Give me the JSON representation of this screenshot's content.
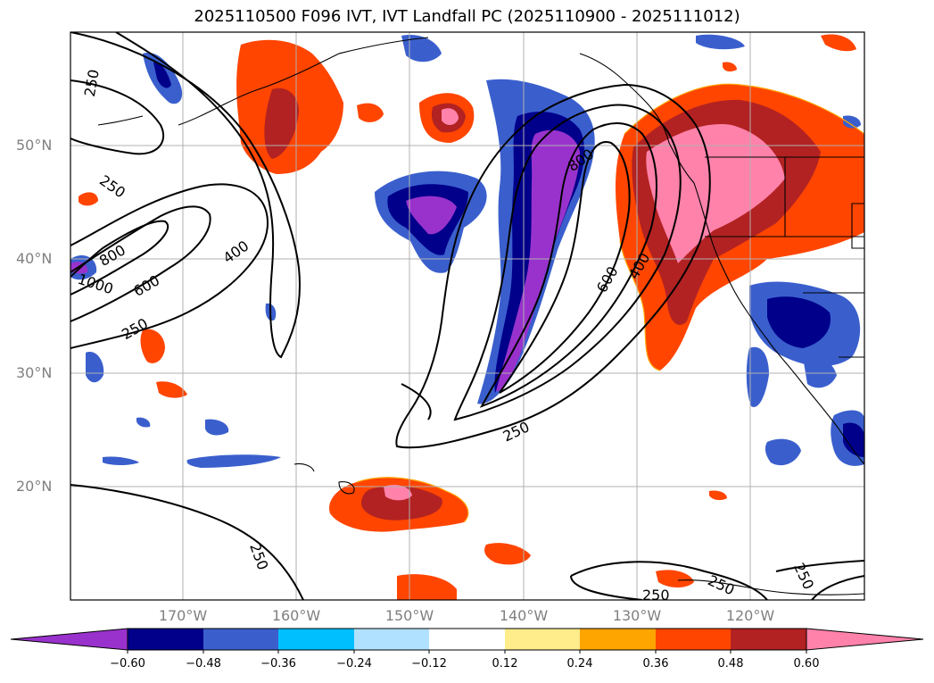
{
  "title": "2025110500 F096 IVT, IVT Landfall PC (2025110900 - 2025111012)",
  "map": {
    "lat_labels": [
      "50°N",
      "40°N",
      "30°N",
      "20°N"
    ],
    "lon_labels": [
      "170°W",
      "160°W",
      "150°W",
      "140°W",
      "130°W",
      "120°W"
    ],
    "contour_labels": [
      "250",
      "250",
      "800",
      "1000",
      "600",
      "250",
      "400",
      "800",
      "600",
      "400",
      "250",
      "250",
      "250",
      "250"
    ]
  },
  "colorbar": {
    "colors": [
      "#9932CC",
      "#00008B",
      "#3A5FCD",
      "#00BFFF",
      "#B0E2FF",
      "#FFFFFF",
      "#FFEC8B",
      "#FFA500",
      "#FF4500",
      "#B22222",
      "#FF82AB"
    ],
    "ticks": [
      "−0.60",
      "−0.48",
      "−0.36",
      "−0.24",
      "−0.12",
      "0.12",
      "0.24",
      "0.36",
      "0.48",
      "0.60"
    ]
  },
  "colors": {
    "negative_strong": "#9932CC",
    "positive_strong": "#FF82AB",
    "gridline": "#b0b0b0",
    "contour": "#000000"
  }
}
